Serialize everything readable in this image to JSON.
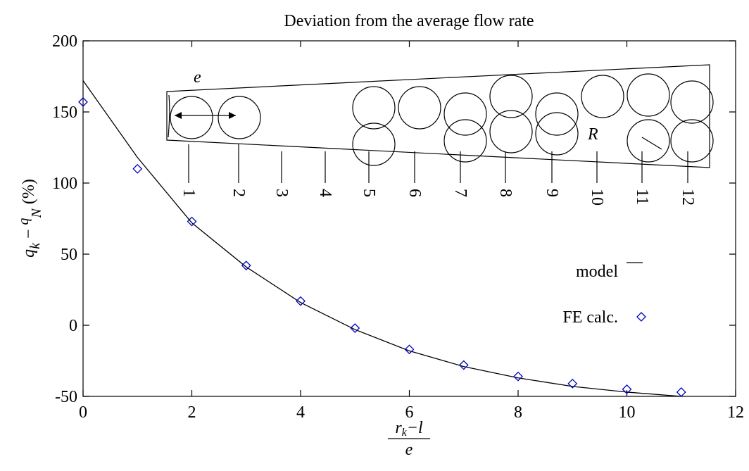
{
  "chart_data": {
    "type": "line",
    "title": "Deviation from the average flow rate",
    "x": [
      0,
      1,
      2,
      3,
      4,
      5,
      6,
      7,
      8,
      9,
      10,
      11
    ],
    "series": [
      {
        "name": "model",
        "color": "#000000",
        "style": "line",
        "values": [
          172,
          118,
          72,
          41,
          16,
          -3,
          -18,
          -29,
          -37,
          -43,
          -47,
          -50
        ]
      },
      {
        "name": "FE calc.",
        "color": "#0000c0",
        "style": "diamond",
        "values": [
          157,
          110,
          73,
          42,
          17,
          -2,
          -17,
          -28,
          -36,
          -41,
          -45,
          -47
        ]
      }
    ],
    "xlim": [
      0,
      12
    ],
    "xticks": [
      0,
      2,
      4,
      6,
      8,
      10,
      12
    ],
    "ylim": [
      -50,
      200
    ],
    "yticks": [
      -50,
      0,
      50,
      100,
      150,
      200
    ],
    "xlabel": {
      "num": [
        "r",
        "k",
        "−l"
      ],
      "den": "e"
    },
    "ylabel": [
      "q",
      "k",
      " − ",
      "q",
      "N",
      " (%)"
    ],
    "inset": {
      "e": "e",
      "R": "R",
      "labels": [
        "1",
        "2",
        "3",
        "4",
        "5",
        "6",
        "7",
        "8",
        "9",
        "10",
        "11",
        "12"
      ]
    }
  }
}
